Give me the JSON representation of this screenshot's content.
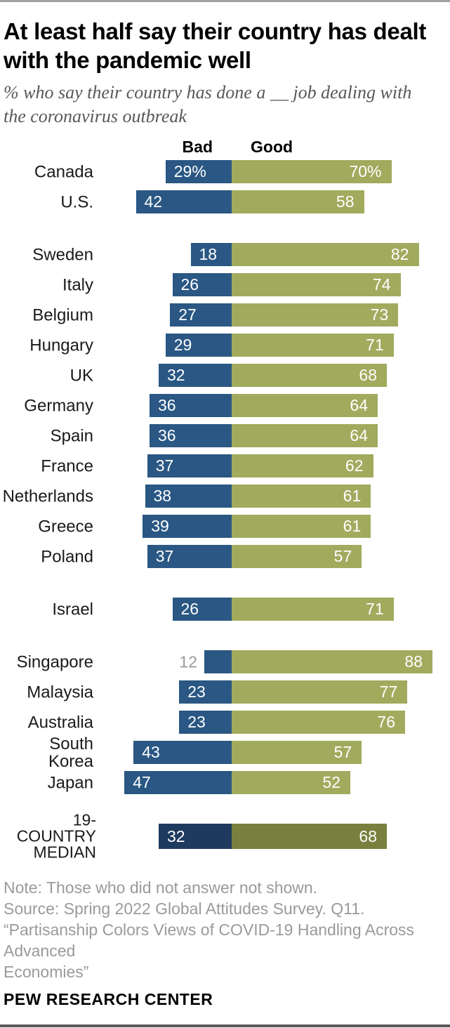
{
  "chart_data": {
    "type": "bar",
    "variant": "horizontal-diverging-stacked",
    "title": "At least half say their country has dealt with the pandemic well",
    "title_lines": [
      "At least half say their country has dealt",
      "with the pandemic well"
    ],
    "subtitle": "% who say their country has done a __ job dealing with the coronavirus outbreak",
    "subtitle_lines": [
      "% who say their country has done a __ job dealing with",
      "the coronavirus outbreak"
    ],
    "legend": {
      "bad": "Bad",
      "good": "Good"
    },
    "value_unit": "%",
    "categories": [
      "Canada",
      "U.S.",
      "Sweden",
      "Italy",
      "Belgium",
      "Hungary",
      "UK",
      "Germany",
      "Spain",
      "France",
      "Netherlands",
      "Greece",
      "Poland",
      "Israel",
      "Singapore",
      "Malaysia",
      "Australia",
      "South Korea",
      "Japan",
      "19-COUNTRY MEDIAN"
    ],
    "series": [
      {
        "name": "Bad",
        "values": [
          29,
          42,
          18,
          26,
          27,
          29,
          32,
          36,
          36,
          37,
          38,
          39,
          37,
          26,
          12,
          23,
          23,
          43,
          47,
          32
        ]
      },
      {
        "name": "Good",
        "values": [
          70,
          58,
          82,
          74,
          73,
          71,
          68,
          64,
          64,
          62,
          61,
          61,
          57,
          71,
          88,
          77,
          76,
          57,
          52,
          68
        ]
      }
    ],
    "rows": [
      {
        "label": "Canada",
        "bad": 29,
        "good": 70,
        "bad_label": "29%",
        "good_label": "70%"
      },
      {
        "label": "U.S.",
        "bad": 42,
        "good": 58,
        "bad_label": "42",
        "good_label": "58"
      },
      {
        "label": "Sweden",
        "bad": 18,
        "good": 82,
        "bad_label": "18",
        "good_label": "82",
        "group_start": true
      },
      {
        "label": "Italy",
        "bad": 26,
        "good": 74,
        "bad_label": "26",
        "good_label": "74"
      },
      {
        "label": "Belgium",
        "bad": 27,
        "good": 73,
        "bad_label": "27",
        "good_label": "73"
      },
      {
        "label": "Hungary",
        "bad": 29,
        "good": 71,
        "bad_label": "29",
        "good_label": "71"
      },
      {
        "label": "UK",
        "bad": 32,
        "good": 68,
        "bad_label": "32",
        "good_label": "68"
      },
      {
        "label": "Germany",
        "bad": 36,
        "good": 64,
        "bad_label": "36",
        "good_label": "64"
      },
      {
        "label": "Spain",
        "bad": 36,
        "good": 64,
        "bad_label": "36",
        "good_label": "64"
      },
      {
        "label": "France",
        "bad": 37,
        "good": 62,
        "bad_label": "37",
        "good_label": "62"
      },
      {
        "label": "Netherlands",
        "bad": 38,
        "good": 61,
        "bad_label": "38",
        "good_label": "61"
      },
      {
        "label": "Greece",
        "bad": 39,
        "good": 61,
        "bad_label": "39",
        "good_label": "61"
      },
      {
        "label": "Poland",
        "bad": 37,
        "good": 57,
        "bad_label": "37",
        "good_label": "57"
      },
      {
        "label": "Israel",
        "bad": 26,
        "good": 71,
        "bad_label": "26",
        "good_label": "71",
        "group_start": true
      },
      {
        "label": "Singapore",
        "bad": 12,
        "good": 88,
        "bad_label": "12",
        "good_label": "88",
        "group_start": true,
        "bad_value_outside": true
      },
      {
        "label": "Malaysia",
        "bad": 23,
        "good": 77,
        "bad_label": "23",
        "good_label": "77"
      },
      {
        "label": "Australia",
        "bad": 23,
        "good": 76,
        "bad_label": "23",
        "good_label": "76"
      },
      {
        "label": "South Korea",
        "bad": 43,
        "good": 57,
        "bad_label": "43",
        "good_label": "57"
      },
      {
        "label": "Japan",
        "bad": 47,
        "good": 52,
        "bad_label": "47",
        "good_label": "52"
      },
      {
        "label": "19-COUNTRY\nMEDIAN",
        "bad": 32,
        "good": 68,
        "bad_label": "32",
        "good_label": "68",
        "group_start": true,
        "median": true
      }
    ],
    "colors": {
      "bad": "#2a5783",
      "good": "#a2aa5e",
      "bad_median": "#1e3a5f",
      "good_median": "#78803e",
      "value_text": "#ffffff",
      "outside_value_text": "#9a9a9a"
    },
    "layout_hints": {
      "legend_position": "top",
      "grid": "off",
      "axis": "none"
    }
  },
  "footer": {
    "note": "Note: Those who did not answer not shown.",
    "source": "Source: Spring 2022 Global Attitudes Survey. Q11.",
    "citation_lines": [
      "“Partisanship Colors Views of COVID-19 Handling Across Advanced",
      "Economies”"
    ],
    "brand": "PEW RESEARCH CENTER"
  }
}
